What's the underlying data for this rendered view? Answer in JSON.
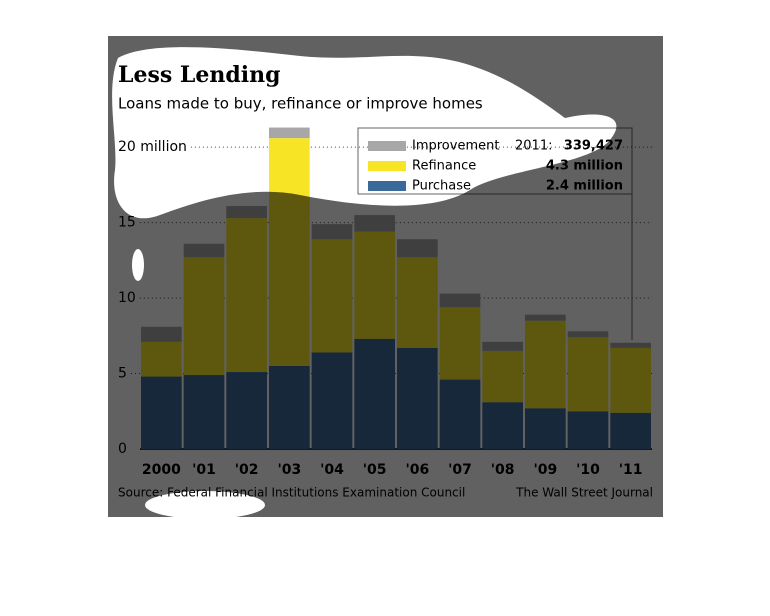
{
  "chart_data": {
    "type": "bar",
    "stacked": true,
    "title": "Less Lending",
    "subtitle": "Loans made to buy, refinance or improve homes",
    "source": "Source: Federal Financial Institutions Examination Council",
    "credit": "The Wall Street Journal",
    "categories": [
      "2000",
      "'01",
      "'02",
      "'03",
      "'04",
      "'05",
      "'06",
      "'07",
      "'08",
      "'09",
      "'10",
      "'11"
    ],
    "series": [
      {
        "name": "Purchase",
        "color": "#3a6a9a",
        "values": [
          4.8,
          4.9,
          5.1,
          5.5,
          6.4,
          7.3,
          6.7,
          4.6,
          3.1,
          2.7,
          2.5,
          2.4
        ],
        "value_labels": [
          null,
          null,
          null,
          null,
          null,
          null,
          null,
          null,
          null,
          null,
          null,
          "2.4 million"
        ]
      },
      {
        "name": "Refinance",
        "color": "#f7e425",
        "values": [
          2.3,
          7.8,
          10.2,
          15.1,
          7.5,
          7.1,
          6.0,
          4.8,
          3.4,
          5.8,
          4.9,
          4.3
        ],
        "value_labels": [
          null,
          null,
          null,
          null,
          null,
          null,
          null,
          null,
          null,
          null,
          null,
          "4.3 million"
        ]
      },
      {
        "name": "Improvement",
        "color": "#a7a7a7",
        "values": [
          1.0,
          0.9,
          0.8,
          0.7,
          1.0,
          1.1,
          1.2,
          0.9,
          0.6,
          0.4,
          0.4,
          0.339427
        ],
        "value_labels": [
          null,
          null,
          null,
          null,
          null,
          null,
          null,
          null,
          null,
          null,
          null,
          "339,427"
        ]
      }
    ],
    "annotation": "2011:",
    "ylim": [
      0,
      22
    ],
    "yticks": [
      0,
      5,
      10,
      15,
      {
        "value": 20,
        "label": "20 million"
      }
    ],
    "grid": true
  }
}
